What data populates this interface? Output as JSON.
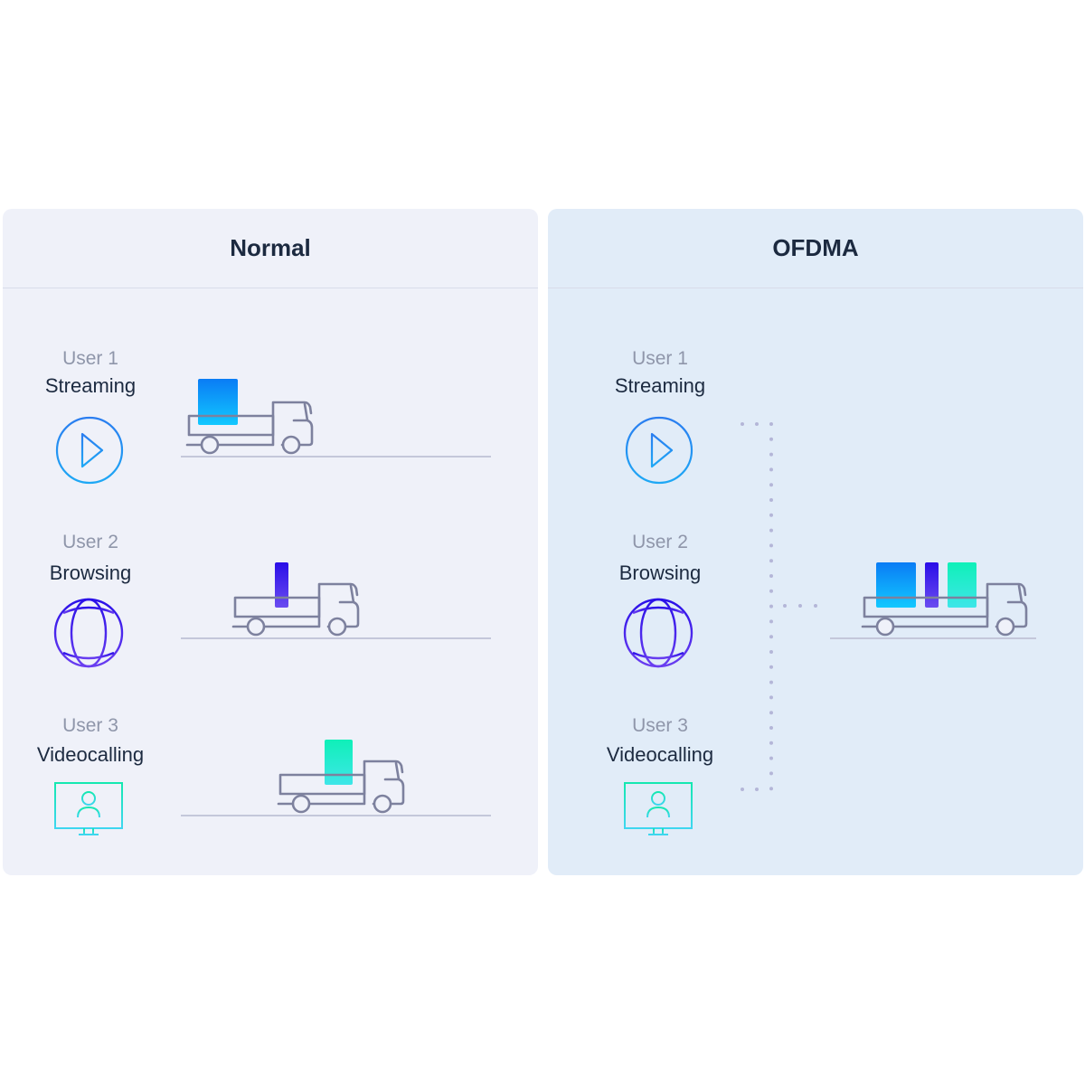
{
  "panels": [
    {
      "title": "Normal",
      "users": [
        {
          "name": "User 1",
          "task": "Streaming",
          "icon": "play-icon"
        },
        {
          "name": "User 2",
          "task": "Browsing",
          "icon": "globe-icon"
        },
        {
          "name": "User 3",
          "task": "Videocalling",
          "icon": "monitor-user-icon"
        }
      ]
    },
    {
      "title": "OFDMA",
      "users": [
        {
          "name": "User 1",
          "task": "Streaming",
          "icon": "play-icon"
        },
        {
          "name": "User 2",
          "task": "Browsing",
          "icon": "globe-icon"
        },
        {
          "name": "User 3",
          "task": "Videocalling",
          "icon": "monitor-user-icon"
        }
      ]
    }
  ],
  "colors": {
    "streaming": "#1e90ff",
    "browsing": "#3a1ee0",
    "videocalling": "#1ee8c8",
    "truck": "#7d819e",
    "dots": "#b4b6d8"
  }
}
